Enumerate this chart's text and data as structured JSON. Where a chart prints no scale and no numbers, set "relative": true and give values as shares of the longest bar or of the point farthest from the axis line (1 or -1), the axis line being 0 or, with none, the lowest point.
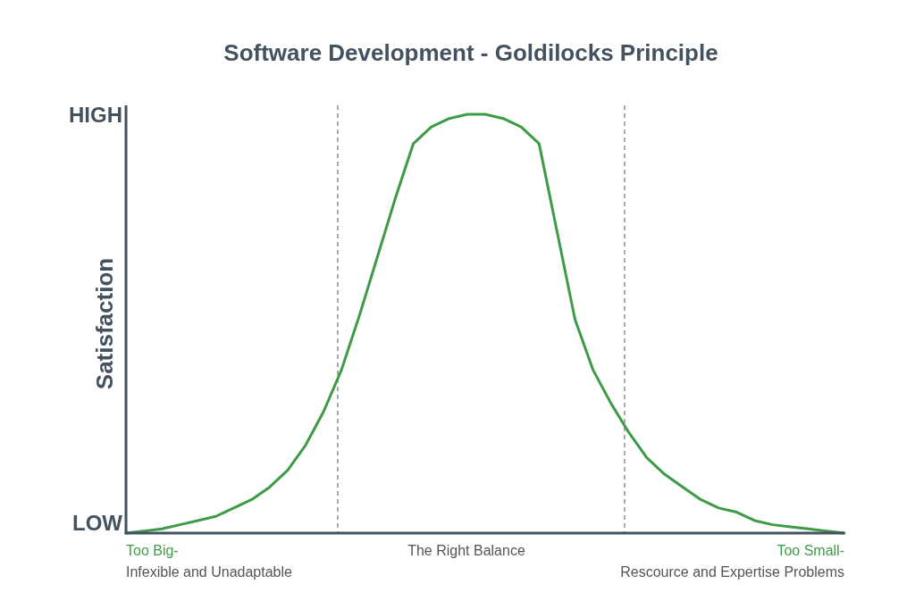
{
  "chart_data": {
    "type": "line",
    "title": "Software Development - Goldilocks Principle",
    "ylabel": "Satisfaction",
    "relative": true,
    "categories": [
      null,
      null,
      null,
      null,
      null,
      null,
      null,
      null,
      null,
      null,
      null,
      null,
      null,
      null,
      null,
      null,
      null,
      null,
      null,
      null,
      null,
      null,
      null,
      null,
      null,
      null,
      null,
      null,
      null,
      null,
      null,
      null,
      null,
      null,
      null,
      null,
      null,
      null,
      null,
      null,
      null
    ],
    "series": [
      {
        "color": "#3d9b47",
        "values": [
          0,
          0.005,
          0.01,
          0.02,
          0.03,
          0.04,
          0.06,
          0.08,
          0.11,
          0.15,
          0.21,
          0.29,
          0.39,
          0.52,
          0.66,
          0.8,
          0.93,
          0.97,
          0.99,
          1,
          1,
          0.99,
          0.97,
          0.93,
          0.72,
          0.51,
          0.39,
          0.31,
          0.24,
          0.18,
          0.14,
          0.11,
          0.08,
          0.06,
          0.05,
          0.03,
          0.02,
          0.015,
          0.01,
          0.005,
          0
        ]
      }
    ],
    "marker": "none",
    "line_style": "solid",
    "annotations": [
      "HIGH",
      "LOW",
      "Too Big-",
      "Infexible and Unadaptable",
      "The Right Balance",
      "Too Small-",
      "Rescource and Expertise Problems"
    ]
  }
}
